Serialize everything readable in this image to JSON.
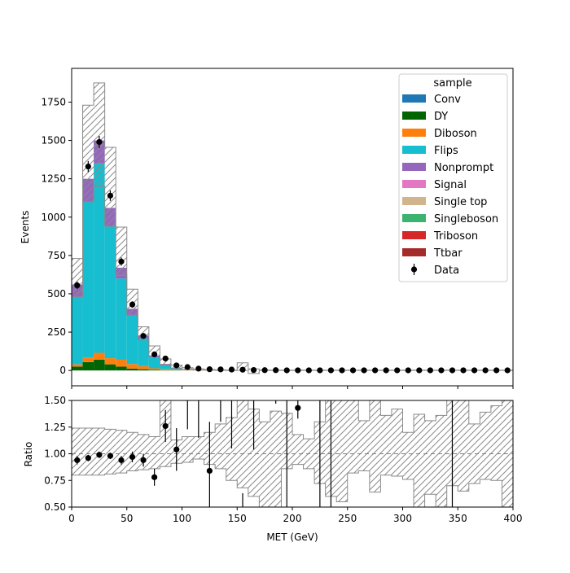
{
  "chart_data": [
    {
      "type": "bar",
      "stacked": true,
      "ylabel": "Events",
      "xlim": [
        0,
        400
      ],
      "ylim": [
        -100,
        1970
      ],
      "bin_edges": [
        0,
        10,
        20,
        30,
        40,
        50,
        60,
        70,
        80,
        90,
        100,
        110,
        120,
        130,
        140,
        150,
        160,
        170,
        180,
        190,
        200,
        210,
        220,
        230,
        240,
        250,
        260,
        270,
        280,
        290,
        300,
        310,
        320,
        330,
        340,
        350,
        360,
        370,
        380,
        390,
        400
      ],
      "x_ticks": [
        0,
        50,
        100,
        150,
        200,
        250,
        300,
        350,
        400
      ],
      "y_ticks": [
        0,
        250,
        500,
        750,
        1000,
        1250,
        1500,
        1750
      ],
      "series": [
        {
          "name": "Conv",
          "color": "#1f77b4",
          "values": [
            0,
            0,
            0,
            0,
            0,
            0,
            0,
            0,
            0,
            0,
            0,
            0,
            0,
            0,
            0,
            0,
            0,
            0,
            0,
            0,
            0,
            0,
            0,
            0,
            0,
            0,
            0,
            0,
            0,
            0,
            0,
            0,
            0,
            0,
            0,
            0,
            0,
            0,
            0,
            0
          ]
        },
        {
          "name": "DY",
          "color": "#006400",
          "values": [
            25,
            55,
            70,
            40,
            25,
            12,
            8,
            4,
            2,
            1,
            0,
            0,
            0,
            0,
            0,
            0,
            0,
            0,
            0,
            0,
            0,
            0,
            0,
            0,
            0,
            0,
            0,
            0,
            0,
            0,
            0,
            0,
            0,
            0,
            0,
            0,
            0,
            0,
            0,
            0
          ]
        },
        {
          "name": "Diboson",
          "color": "#ff7f0e",
          "values": [
            15,
            30,
            45,
            40,
            45,
            30,
            20,
            10,
            6,
            3,
            2,
            1,
            1,
            0,
            0,
            0,
            0,
            0,
            0,
            0,
            0,
            0,
            0,
            0,
            0,
            0,
            0,
            0,
            0,
            0,
            0,
            0,
            0,
            0,
            0,
            0,
            0,
            0,
            0,
            0
          ]
        },
        {
          "name": "Flips",
          "color": "#17becf",
          "values": [
            440,
            1015,
            1235,
            860,
            530,
            320,
            180,
            70,
            25,
            8,
            3,
            1,
            0,
            0,
            0,
            0,
            0,
            0,
            0,
            0,
            0,
            0,
            0,
            0,
            0,
            0,
            0,
            0,
            0,
            0,
            0,
            0,
            0,
            0,
            0,
            0,
            0,
            0,
            0,
            0
          ]
        },
        {
          "name": "Nonprompt",
          "color": "#9467bd",
          "values": [
            80,
            150,
            150,
            120,
            70,
            40,
            20,
            10,
            5,
            2,
            1,
            0,
            0,
            0,
            0,
            0,
            0,
            0,
            0,
            0,
            0,
            0,
            0,
            0,
            0,
            0,
            0,
            0,
            0,
            0,
            0,
            0,
            0,
            0,
            0,
            0,
            0,
            0,
            0,
            0
          ]
        },
        {
          "name": "Signal",
          "color": "#e377c2",
          "values": [
            0,
            0,
            0,
            0,
            0,
            0,
            0,
            0,
            0,
            0,
            0,
            0,
            0,
            0,
            0,
            0,
            0,
            0,
            0,
            0,
            0,
            0,
            0,
            0,
            0,
            0,
            0,
            0,
            0,
            0,
            0,
            0,
            0,
            0,
            0,
            0,
            0,
            0,
            0,
            0
          ]
        },
        {
          "name": "Single top",
          "color": "#d2b48c",
          "values": [
            0,
            0,
            0,
            0,
            0,
            0,
            0,
            0,
            0,
            0,
            0,
            0,
            0,
            0,
            0,
            0,
            0,
            0,
            0,
            0,
            0,
            0,
            0,
            0,
            0,
            0,
            0,
            0,
            0,
            0,
            0,
            0,
            0,
            0,
            0,
            0,
            0,
            0,
            0,
            0
          ]
        },
        {
          "name": "Singleboson",
          "color": "#3cb371",
          "values": [
            0,
            0,
            0,
            0,
            0,
            0,
            0,
            0,
            0,
            0,
            0,
            0,
            0,
            0,
            0,
            0,
            0,
            0,
            0,
            0,
            0,
            0,
            0,
            0,
            0,
            0,
            0,
            0,
            0,
            0,
            0,
            0,
            0,
            0,
            0,
            0,
            0,
            0,
            0,
            0
          ]
        },
        {
          "name": "Triboson",
          "color": "#d62728",
          "values": [
            0,
            0,
            0,
            0,
            0,
            0,
            0,
            0,
            0,
            0,
            0,
            0,
            0,
            0,
            0,
            0,
            0,
            0,
            0,
            0,
            0,
            0,
            0,
            0,
            0,
            0,
            0,
            0,
            0,
            0,
            0,
            0,
            0,
            0,
            0,
            0,
            0,
            0,
            0,
            0
          ]
        },
        {
          "name": "Ttbar",
          "color": "#a52a2a",
          "values": [
            0,
            0,
            0,
            0,
            0,
            0,
            0,
            0,
            0,
            0,
            0,
            0,
            0,
            0,
            0,
            0,
            0,
            0,
            0,
            0,
            0,
            0,
            0,
            0,
            0,
            0,
            0,
            0,
            0,
            0,
            0,
            0,
            0,
            0,
            0,
            0,
            0,
            0,
            0,
            0
          ]
        }
      ],
      "uncertainty_band": {
        "low": [
          480,
          1100,
          1200,
          940,
          620,
          360,
          200,
          95,
          40,
          15,
          6,
          3,
          2,
          1,
          0,
          0,
          -20,
          0,
          0,
          0,
          0,
          0,
          0,
          0,
          0,
          0,
          0,
          0,
          0,
          0,
          0,
          0,
          0,
          0,
          0,
          0,
          0,
          0,
          0,
          0
        ],
        "high": [
          730,
          1730,
          1875,
          1455,
          935,
          530,
          285,
          160,
          75,
          35,
          18,
          10,
          6,
          4,
          3,
          50,
          10,
          3,
          2,
          2,
          2,
          2,
          2,
          2,
          2,
          2,
          2,
          2,
          2,
          2,
          2,
          2,
          2,
          2,
          2,
          2,
          2,
          2,
          2,
          2
        ]
      },
      "data": {
        "name": "Data",
        "x": [
          5,
          15,
          25,
          35,
          45,
          55,
          65,
          75,
          85,
          95,
          105,
          115,
          125,
          135,
          145,
          155,
          165,
          175,
          185,
          195,
          205,
          215,
          225,
          235,
          245,
          255,
          265,
          275,
          285,
          295,
          305,
          315,
          325,
          335,
          345,
          355,
          365,
          375,
          385,
          395
        ],
        "y": [
          555,
          1330,
          1490,
          1140,
          710,
          430,
          225,
          105,
          78,
          33,
          22,
          12,
          8,
          7,
          6,
          5,
          3,
          2,
          2,
          1,
          1,
          1,
          1,
          1,
          1,
          1,
          1,
          1,
          1,
          1,
          1,
          1,
          1,
          1,
          1,
          1,
          1,
          1,
          1,
          1
        ],
        "err": [
          24,
          36,
          39,
          34,
          27,
          21,
          15,
          10,
          9,
          6,
          5,
          4,
          3,
          3,
          2,
          2,
          2,
          1,
          1,
          1,
          1,
          1,
          1,
          1,
          1,
          1,
          1,
          1,
          1,
          1,
          1,
          1,
          1,
          1,
          1,
          1,
          1,
          1,
          1,
          1
        ]
      },
      "legend": {
        "title": "sample",
        "placement": "top-right"
      }
    },
    {
      "type": "scatter",
      "xlabel": "MET (GeV)",
      "ylabel": "Ratio",
      "xlim": [
        0,
        400
      ],
      "ylim": [
        0.5,
        1.5
      ],
      "x_ticks": [
        0,
        50,
        100,
        150,
        200,
        250,
        300,
        350,
        400
      ],
      "y_ticks": [
        0.5,
        0.75,
        1.0,
        1.25,
        1.5
      ],
      "reference_line": 1.0,
      "band_low": [
        0.8,
        0.8,
        0.8,
        0.81,
        0.82,
        0.84,
        0.85,
        0.86,
        0.88,
        0.91,
        0.92,
        0.95,
        0.9,
        0.86,
        0.75,
        0.68,
        0.6,
        0.5,
        0.5,
        0.86,
        0.9,
        0.86,
        0.72,
        0.6,
        0.55,
        0.82,
        0.84,
        0.64,
        0.8,
        0.79,
        0.76,
        0.5,
        0.62,
        0.5,
        0.7,
        0.65,
        0.72,
        0.76,
        0.75,
        0.5
      ],
      "band_high": [
        1.24,
        1.24,
        1.24,
        1.23,
        1.22,
        1.2,
        1.18,
        1.16,
        1.5,
        1.13,
        1.16,
        1.16,
        1.2,
        1.28,
        1.34,
        1.5,
        1.42,
        1.3,
        1.4,
        1.38,
        1.18,
        1.14,
        1.3,
        1.5,
        1.5,
        1.5,
        1.31,
        1.5,
        1.36,
        1.42,
        1.2,
        1.37,
        1.31,
        1.36,
        1.5,
        1.5,
        1.28,
        1.39,
        1.45,
        1.5
      ],
      "points": {
        "x": [
          5,
          15,
          25,
          35,
          45,
          55,
          65,
          75,
          85,
          95,
          125,
          205
        ],
        "y": [
          0.94,
          0.96,
          0.99,
          0.98,
          0.94,
          0.97,
          0.94,
          0.78,
          1.26,
          1.04,
          0.84,
          1.43
        ],
        "err": [
          0.04,
          0.03,
          0.03,
          0.03,
          0.04,
          0.05,
          0.06,
          0.08,
          0.15,
          0.2,
          0.46,
          0.1
        ]
      },
      "error_only_bins": [
        {
          "x": 105,
          "low": 1.23,
          "high": 1.5
        },
        {
          "x": 115,
          "low": 1.15,
          "high": 1.5
        },
        {
          "x": 135,
          "low": 1.3,
          "high": 1.5
        },
        {
          "x": 145,
          "low": 1.05,
          "high": 1.5
        },
        {
          "x": 155,
          "low": 0.5,
          "high": 0.63
        },
        {
          "x": 165,
          "low": 1.04,
          "high": 1.5
        },
        {
          "x": 185,
          "low": 1.47,
          "high": 1.5
        },
        {
          "x": 195,
          "low": 0.5,
          "high": 1.5
        },
        {
          "x": 225,
          "low": 0.5,
          "high": 1.5
        },
        {
          "x": 235,
          "low": 0.5,
          "high": 1.5
        },
        {
          "x": 345,
          "low": 0.5,
          "high": 1.5
        }
      ]
    }
  ]
}
